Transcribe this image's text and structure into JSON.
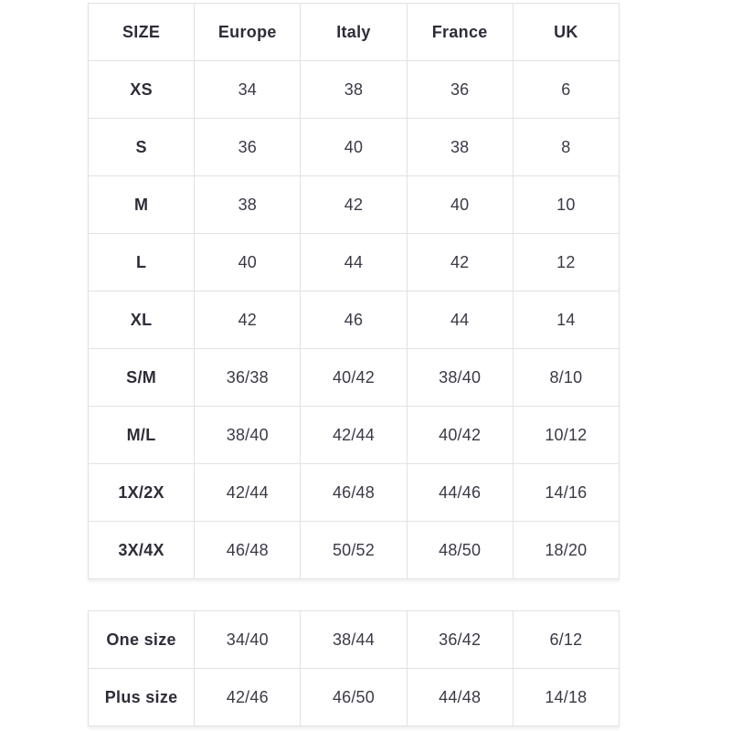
{
  "colors": {
    "background": "#ffffff",
    "border": "#e2e2e5",
    "header_text": "#2d2d3a",
    "cell_text": "#3a3a47"
  },
  "chart_data": [
    {
      "type": "table",
      "columns": [
        "SIZE",
        "Europe",
        "Italy",
        "France",
        "UK"
      ],
      "rows": [
        [
          "XS",
          "34",
          "38",
          "36",
          "6"
        ],
        [
          "S",
          "36",
          "40",
          "38",
          "8"
        ],
        [
          "M",
          "38",
          "42",
          "40",
          "10"
        ],
        [
          "L",
          "40",
          "44",
          "42",
          "12"
        ],
        [
          "XL",
          "42",
          "46",
          "44",
          "14"
        ],
        [
          "S/M",
          "36/38",
          "40/42",
          "38/40",
          "8/10"
        ],
        [
          "M/L",
          "38/40",
          "42/44",
          "40/42",
          "10/12"
        ],
        [
          "1X/2X",
          "42/44",
          "46/48",
          "44/46",
          "14/16"
        ],
        [
          "3X/4X",
          "46/48",
          "50/52",
          "48/50",
          "18/20"
        ]
      ]
    },
    {
      "type": "table",
      "columns": [],
      "rows": [
        [
          "One size",
          "34/40",
          "38/44",
          "36/42",
          "6/12"
        ],
        [
          "Plus size",
          "42/46",
          "46/50",
          "44/48",
          "14/18"
        ]
      ]
    }
  ]
}
